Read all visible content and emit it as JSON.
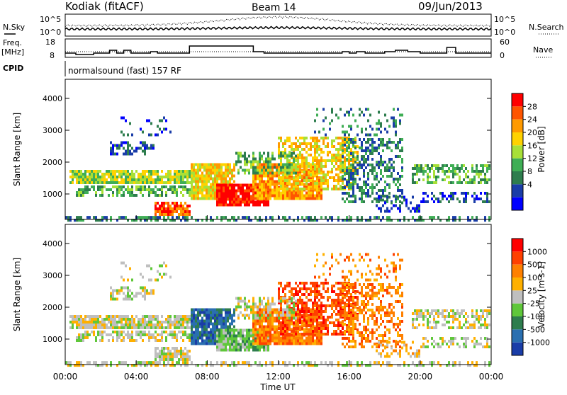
{
  "header": {
    "station": "Kodiak (fitACF)",
    "beam": "Beam 14",
    "date": "09/Jun/2013"
  },
  "side_labels": {
    "nsky": "N.Sky",
    "nsearch": "N.Search",
    "freq_line1": "Freq.",
    "freq_line2": "[MHz]",
    "nave": "Nave",
    "cpid": "CPID",
    "cpid_value": "normalsound (fast) 157 RF"
  },
  "noise_panel": {
    "ytick_top": "10^5",
    "ytick_bottom": "10^0",
    "ytick_top_right": "10^5",
    "ytick_bottom_right": "10^0"
  },
  "freq_panel": {
    "left_ticks": [
      "18",
      "8"
    ],
    "right_ticks": [
      "60",
      "0"
    ],
    "freq_segments": [
      {
        "start": 0.0,
        "end": 0.6,
        "value": 11
      },
      {
        "start": 0.6,
        "end": 1.6,
        "value": 10
      },
      {
        "start": 1.6,
        "end": 2.5,
        "value": 11
      },
      {
        "start": 2.5,
        "end": 2.9,
        "value": 13
      },
      {
        "start": 2.9,
        "end": 3.3,
        "value": 11
      },
      {
        "start": 3.3,
        "end": 3.7,
        "value": 13
      },
      {
        "start": 3.7,
        "end": 4.8,
        "value": 11
      },
      {
        "start": 4.8,
        "end": 5.2,
        "value": 12
      },
      {
        "start": 5.2,
        "end": 7.0,
        "value": 11
      },
      {
        "start": 7.0,
        "end": 10.6,
        "value": 16
      },
      {
        "start": 10.6,
        "end": 11.2,
        "value": 12
      },
      {
        "start": 11.2,
        "end": 15.6,
        "value": 11
      },
      {
        "start": 15.6,
        "end": 16.0,
        "value": 12
      },
      {
        "start": 16.0,
        "end": 16.4,
        "value": 11
      },
      {
        "start": 16.4,
        "end": 16.9,
        "value": 12
      },
      {
        "start": 16.9,
        "end": 18.0,
        "value": 11
      },
      {
        "start": 18.0,
        "end": 18.6,
        "value": 12
      },
      {
        "start": 18.6,
        "end": 19.3,
        "value": 13
      },
      {
        "start": 19.3,
        "end": 20.0,
        "value": 12
      },
      {
        "start": 20.0,
        "end": 21.5,
        "value": 11
      },
      {
        "start": 21.5,
        "end": 22.0,
        "value": 15
      },
      {
        "start": 22.0,
        "end": 24.0,
        "value": 11
      }
    ]
  },
  "chart_data": [
    {
      "type": "heatmap",
      "panel": "power",
      "ylabel": "Slant Range [km]",
      "xlabel": "",
      "xlim": [
        0,
        24
      ],
      "ylim": [
        200,
        4600
      ],
      "yticks": [
        "1000",
        "2000",
        "3000",
        "4000"
      ],
      "colorbar_label": "Power [dB]",
      "colorbar_ticks": [
        "28",
        "24",
        "20",
        "16",
        "12",
        "8",
        "4"
      ],
      "colorbar_colors": [
        "#0000ff",
        "#1a3da8",
        "#2e7d4e",
        "#3fae55",
        "#a8e037",
        "#ffd200",
        "#ff9a00",
        "#ff5500",
        "#ff0000"
      ]
    },
    {
      "type": "heatmap",
      "panel": "velocity",
      "ylabel": "Slant Range [km]",
      "xlabel": "Time UT",
      "xlim": [
        0,
        24
      ],
      "ylim": [
        200,
        4600
      ],
      "yticks": [
        "1000",
        "2000",
        "3000",
        "4000"
      ],
      "xticks": [
        "00:00",
        "04:00",
        "08:00",
        "12:00",
        "16:00",
        "20:00",
        "00:00"
      ],
      "colorbar_label": "Velocity [m s-1]",
      "colorbar_ticks": [
        "1000",
        "500",
        "100",
        "25",
        "-25",
        "-100",
        "-500",
        "-1000"
      ],
      "colorbar_colors": [
        "#1a3da8",
        "#2a6fb0",
        "#2e7d4e",
        "#5fc73a",
        "#bfbfbf",
        "#ffb000",
        "#ff8000",
        "#ff4000",
        "#ff0000"
      ]
    }
  ]
}
